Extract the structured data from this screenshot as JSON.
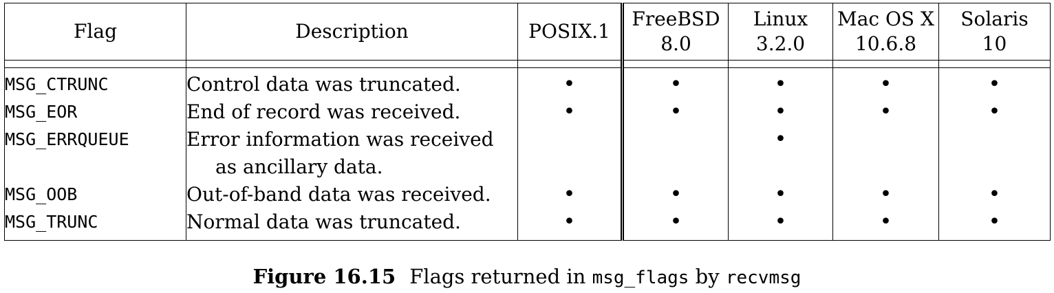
{
  "headers": {
    "flag": "Flag",
    "description": "Description",
    "posix": "POSIX.1",
    "freebsd": [
      "FreeBSD",
      "8.0"
    ],
    "linux": [
      "Linux",
      "3.2.0"
    ],
    "macos": [
      "Mac OS X",
      "10.6.8"
    ],
    "solaris": [
      "Solaris",
      "10"
    ]
  },
  "rows": [
    {
      "flag": "MSG_CTRUNC",
      "description": "Control data was truncated.",
      "description_cont": "",
      "posix": "•",
      "freebsd": "•",
      "linux": "•",
      "macos": "•",
      "solaris": "•"
    },
    {
      "flag": "MSG_EOR",
      "description": "End of record was received.",
      "description_cont": "",
      "posix": "•",
      "freebsd": "•",
      "linux": "•",
      "macos": "•",
      "solaris": "•"
    },
    {
      "flag": "MSG_ERRQUEUE",
      "description": "Error information was received",
      "description_cont": "as ancillary data.",
      "posix": "",
      "freebsd": "",
      "linux": "•",
      "macos": "",
      "solaris": ""
    },
    {
      "flag": "MSG_OOB",
      "description": "Out-of-band data was received.",
      "description_cont": "",
      "posix": "•",
      "freebsd": "•",
      "linux": "•",
      "macos": "•",
      "solaris": "•"
    },
    {
      "flag": "MSG_TRUNC",
      "description": "Normal data was truncated.",
      "description_cont": "",
      "posix": "•",
      "freebsd": "•",
      "linux": "•",
      "macos": "•",
      "solaris": "•"
    }
  ],
  "caption": {
    "label": "Figure 16.15",
    "text_before": "Flags returned in",
    "code1": "msg_flags",
    "text_mid": "by",
    "code2": "recvmsg"
  }
}
